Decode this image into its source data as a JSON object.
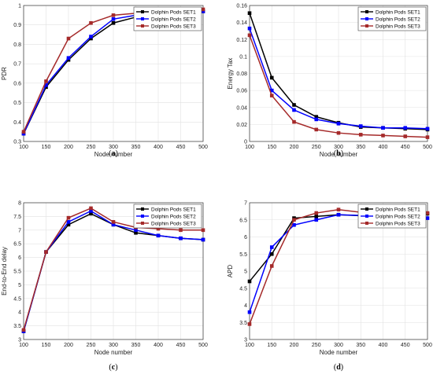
{
  "chart_data": [
    {
      "type": "line",
      "panel_label": "(a)",
      "xlabel": "Node number",
      "ylabel": "PDR",
      "x": [
        100,
        150,
        200,
        250,
        300,
        350,
        400,
        450,
        500
      ],
      "xlim": [
        100,
        500
      ],
      "ylim": [
        0.3,
        1.0
      ],
      "xticks": [
        "100",
        "150",
        "200",
        "250",
        "300",
        "350",
        "400",
        "450",
        "500"
      ],
      "yticks": [
        "0.3",
        "0.4",
        "0.5",
        "0.6",
        "0.7",
        "0.8",
        "0.9",
        "1"
      ],
      "ytick_values": [
        0.3,
        0.4,
        0.5,
        0.6,
        0.7,
        0.8,
        0.9,
        1.0
      ],
      "grid": true,
      "legend": "top-right",
      "series": [
        {
          "name": "Dolphin Pods SET1",
          "color": "#000000",
          "values": [
            0.34,
            0.58,
            0.72,
            0.83,
            0.91,
            0.94,
            0.96,
            0.97,
            0.97
          ]
        },
        {
          "name": "Dolphin Pods SET2",
          "color": "#0000ff",
          "values": [
            0.34,
            0.59,
            0.73,
            0.84,
            0.93,
            0.95,
            0.97,
            0.97,
            0.97
          ]
        },
        {
          "name": "Dolphin Pods SET3",
          "color": "#a52a2a",
          "values": [
            0.35,
            0.61,
            0.83,
            0.91,
            0.95,
            0.96,
            0.97,
            0.98,
            0.98
          ]
        }
      ]
    },
    {
      "type": "line",
      "panel_label": "(b)",
      "xlabel": "Node number",
      "ylabel": "Energy Tax",
      "x": [
        100,
        150,
        200,
        250,
        300,
        350,
        400,
        450,
        500
      ],
      "xlim": [
        100,
        500
      ],
      "ylim": [
        0,
        0.16
      ],
      "xticks": [
        "100",
        "150",
        "200",
        "250",
        "300",
        "350",
        "400",
        "450",
        "500"
      ],
      "yticks": [
        "0",
        "0.02",
        "0.04",
        "0.06",
        "0.08",
        "0.1",
        "0.12",
        "0.14",
        "0.16"
      ],
      "ytick_values": [
        0,
        0.02,
        0.04,
        0.06,
        0.08,
        0.1,
        0.12,
        0.14,
        0.16
      ],
      "grid": true,
      "legend": "top-right",
      "series": [
        {
          "name": "Dolphin Pods SET1",
          "color": "#000000",
          "values": [
            0.151,
            0.075,
            0.043,
            0.029,
            0.022,
            0.017,
            0.016,
            0.015,
            0.014
          ]
        },
        {
          "name": "Dolphin Pods SET2",
          "color": "#0000ff",
          "values": [
            0.133,
            0.06,
            0.037,
            0.026,
            0.021,
            0.018,
            0.016,
            0.016,
            0.015
          ]
        },
        {
          "name": "Dolphin Pods SET3",
          "color": "#a52a2a",
          "values": [
            0.125,
            0.054,
            0.023,
            0.014,
            0.01,
            0.008,
            0.007,
            0.006,
            0.005
          ]
        }
      ]
    },
    {
      "type": "line",
      "panel_label": "(c)",
      "xlabel": "Node number",
      "ylabel": "End-to-End delay",
      "x": [
        100,
        150,
        200,
        250,
        300,
        350,
        400,
        450,
        500
      ],
      "xlim": [
        100,
        500
      ],
      "ylim": [
        3,
        8
      ],
      "xticks": [
        "100",
        "150",
        "200",
        "250",
        "300",
        "350",
        "400",
        "450",
        "500"
      ],
      "yticks": [
        "3",
        "3.5",
        "4",
        "4.5",
        "5",
        "5.5",
        "6",
        "6.5",
        "7",
        "7.5",
        "8"
      ],
      "ytick_values": [
        3,
        3.5,
        4,
        4.5,
        5,
        5.5,
        6,
        6.5,
        7,
        7.5,
        8
      ],
      "grid": true,
      "legend": "top-right",
      "series": [
        {
          "name": "Dolphin Pods SET1",
          "color": "#000000",
          "values": [
            3.3,
            6.2,
            7.2,
            7.6,
            7.2,
            6.9,
            6.8,
            6.7,
            6.65
          ]
        },
        {
          "name": "Dolphin Pods SET2",
          "color": "#0000ff",
          "values": [
            3.3,
            6.2,
            7.3,
            7.7,
            7.2,
            7.0,
            6.8,
            6.7,
            6.65
          ]
        },
        {
          "name": "Dolphin Pods SET3",
          "color": "#a52a2a",
          "values": [
            3.35,
            6.2,
            7.45,
            7.8,
            7.3,
            7.1,
            7.05,
            7.0,
            7.0
          ]
        }
      ]
    },
    {
      "type": "line",
      "panel_label": "(d)",
      "xlabel": "Node number",
      "ylabel": "APD",
      "x": [
        100,
        150,
        200,
        250,
        300,
        350,
        400,
        450,
        500
      ],
      "xlim": [
        100,
        500
      ],
      "ylim": [
        3,
        7
      ],
      "xticks": [
        "100",
        "150",
        "200",
        "250",
        "300",
        "350",
        "400",
        "450",
        "500"
      ],
      "yticks": [
        "3",
        "3.5",
        "4",
        "4.5",
        "5",
        "5.5",
        "6",
        "6.5",
        "7"
      ],
      "ytick_values": [
        3,
        3.5,
        4,
        4.5,
        5,
        5.5,
        6,
        6.5,
        7
      ],
      "grid": true,
      "legend": "top-right",
      "series": [
        {
          "name": "Dolphin Pods SET1",
          "color": "#000000",
          "values": [
            4.7,
            5.5,
            6.55,
            6.6,
            6.65,
            6.62,
            6.65,
            6.65,
            6.68
          ]
        },
        {
          "name": "Dolphin Pods SET2",
          "color": "#0000ff",
          "values": [
            3.8,
            5.7,
            6.35,
            6.5,
            6.65,
            6.63,
            6.62,
            6.6,
            6.55
          ]
        },
        {
          "name": "Dolphin Pods SET3",
          "color": "#a52a2a",
          "values": [
            3.45,
            5.15,
            6.5,
            6.7,
            6.8,
            6.72,
            6.7,
            6.7,
            6.7
          ]
        }
      ]
    }
  ]
}
